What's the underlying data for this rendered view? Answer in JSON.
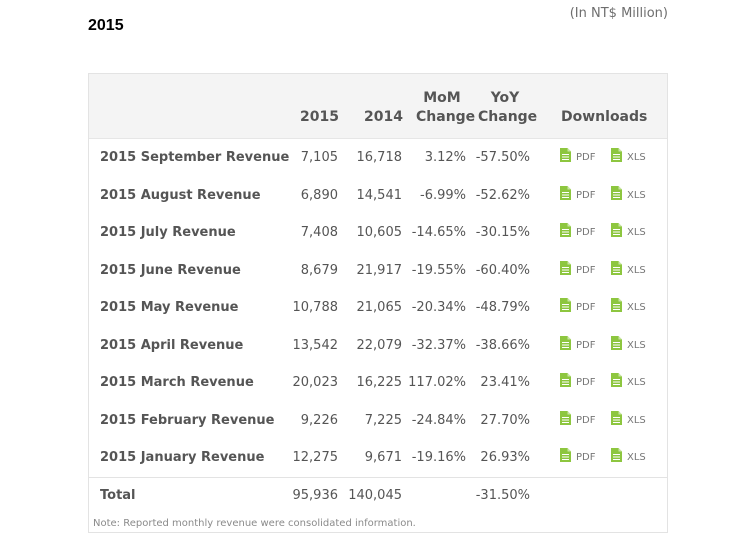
{
  "heading": "2015",
  "units": "(In NT$ Million)",
  "table": {
    "headers": {
      "col_2015": "2015",
      "col_2014": "2014",
      "mom_line1": "MoM",
      "mom_line2": "Change",
      "yoy_line1": "YoY",
      "yoy_line2": "Change",
      "downloads": "Downloads"
    },
    "download_labels": {
      "pdf": "PDF",
      "xls": "XLS"
    },
    "rows": [
      {
        "label": "2015 September Revenue",
        "v2015": "7,105",
        "v2014": "16,718",
        "mom": "3.12%",
        "yoy": "-57.50%"
      },
      {
        "label": "2015 August Revenue",
        "v2015": "6,890",
        "v2014": "14,541",
        "mom": "-6.99%",
        "yoy": "-52.62%"
      },
      {
        "label": "2015 July Revenue",
        "v2015": "7,408",
        "v2014": "10,605",
        "mom": "-14.65%",
        "yoy": "-30.15%"
      },
      {
        "label": "2015 June Revenue",
        "v2015": "8,679",
        "v2014": "21,917",
        "mom": "-19.55%",
        "yoy": "-60.40%"
      },
      {
        "label": "2015 May Revenue",
        "v2015": "10,788",
        "v2014": "21,065",
        "mom": "-20.34%",
        "yoy": "-48.79%"
      },
      {
        "label": "2015 April Revenue",
        "v2015": "13,542",
        "v2014": "22,079",
        "mom": "-32.37%",
        "yoy": "-38.66%"
      },
      {
        "label": "2015 March Revenue",
        "v2015": "20,023",
        "v2014": "16,225",
        "mom": "117.02%",
        "yoy": "23.41%"
      },
      {
        "label": "2015 February Revenue",
        "v2015": "9,226",
        "v2014": "7,225",
        "mom": "-24.84%",
        "yoy": "27.70%"
      },
      {
        "label": "2015 January Revenue",
        "v2015": "12,275",
        "v2014": "9,671",
        "mom": "-19.16%",
        "yoy": "26.93%"
      }
    ],
    "total": {
      "label": "Total",
      "v2015": "95,936",
      "v2014": "140,045",
      "yoy": "-31.50%"
    }
  },
  "note": "Note: Reported monthly revenue were consolidated information.",
  "colors": {
    "icon_green": "#8dc63f",
    "header_bg": "#f4f4f4",
    "text": "#555555"
  },
  "icons": {
    "download": "document-file-icon"
  }
}
